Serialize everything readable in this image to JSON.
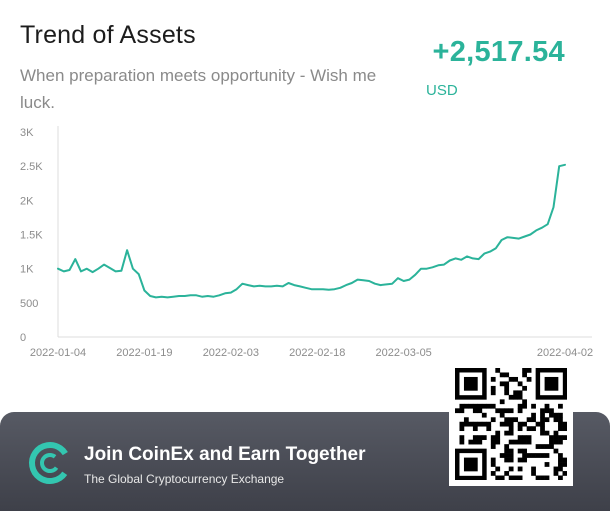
{
  "header": {
    "title": "Trend of Assets",
    "subtitle": "When preparation meets opportunity - Wish me luck.",
    "gain": "+2,517.54",
    "currency": "USD"
  },
  "chart_data": {
    "type": "line",
    "title": "",
    "xlabel": "",
    "ylabel": "",
    "ylim": [
      0,
      3000
    ],
    "yticks": [
      0,
      500,
      1000,
      1500,
      2000,
      2500,
      3000
    ],
    "ytick_labels": [
      "0",
      "500",
      "1K",
      "1.5K",
      "2K",
      "2.5K",
      "3K"
    ],
    "xticks": [
      "2022-01-04",
      "2022-01-19",
      "2022-02-03",
      "2022-02-18",
      "2022-03-05",
      "2022-04-02"
    ],
    "grid": false,
    "color": "#2bb39a",
    "series": [
      {
        "x": [
          "2022-01-04",
          "2022-01-05",
          "2022-01-06",
          "2022-01-07",
          "2022-01-08",
          "2022-01-09",
          "2022-01-10",
          "2022-01-11",
          "2022-01-12",
          "2022-01-13",
          "2022-01-14",
          "2022-01-15",
          "2022-01-16",
          "2022-01-17",
          "2022-01-18",
          "2022-01-19",
          "2022-01-20",
          "2022-01-21",
          "2022-01-22",
          "2022-01-23",
          "2022-01-24",
          "2022-01-25",
          "2022-01-26",
          "2022-01-27",
          "2022-01-28",
          "2022-01-29",
          "2022-01-30",
          "2022-01-31",
          "2022-02-01",
          "2022-02-02",
          "2022-02-03",
          "2022-02-04",
          "2022-02-05",
          "2022-02-06",
          "2022-02-07",
          "2022-02-08",
          "2022-02-09",
          "2022-02-10",
          "2022-02-11",
          "2022-02-12",
          "2022-02-13",
          "2022-02-14",
          "2022-02-15",
          "2022-02-16",
          "2022-02-17",
          "2022-02-18",
          "2022-02-19",
          "2022-02-20",
          "2022-02-21",
          "2022-02-22",
          "2022-02-23",
          "2022-02-24",
          "2022-02-25",
          "2022-02-26",
          "2022-02-27",
          "2022-02-28",
          "2022-03-01",
          "2022-03-02",
          "2022-03-03",
          "2022-03-04",
          "2022-03-05",
          "2022-03-06",
          "2022-03-07",
          "2022-03-08",
          "2022-03-09",
          "2022-03-10",
          "2022-03-11",
          "2022-03-12",
          "2022-03-13",
          "2022-03-14",
          "2022-03-15",
          "2022-03-16",
          "2022-03-17",
          "2022-03-18",
          "2022-03-19",
          "2022-03-20",
          "2022-03-21",
          "2022-03-22",
          "2022-03-23",
          "2022-03-24",
          "2022-03-25",
          "2022-03-26",
          "2022-03-27",
          "2022-03-28",
          "2022-03-29",
          "2022-03-30",
          "2022-03-31",
          "2022-04-01",
          "2022-04-02"
        ],
        "y": [
          1000,
          960,
          980,
          1140,
          960,
          1000,
          950,
          1000,
          1060,
          1010,
          960,
          970,
          1270,
          1000,
          920,
          680,
          600,
          580,
          590,
          580,
          590,
          600,
          600,
          610,
          610,
          590,
          600,
          590,
          610,
          640,
          650,
          700,
          780,
          760,
          740,
          750,
          740,
          740,
          750,
          740,
          790,
          760,
          740,
          720,
          700,
          700,
          700,
          690,
          700,
          720,
          760,
          790,
          840,
          830,
          820,
          780,
          760,
          770,
          780,
          860,
          820,
          840,
          910,
          1000,
          1000,
          1020,
          1050,
          1060,
          1120,
          1150,
          1130,
          1180,
          1150,
          1140,
          1220,
          1250,
          1300,
          1420,
          1460,
          1450,
          1440,
          1470,
          1500,
          1560,
          1600,
          1650,
          1900,
          2500,
          2520
        ]
      }
    ]
  },
  "banner": {
    "logo_icon": "coinex-logo-icon",
    "headline": "Join CoinEx and Earn Together",
    "tagline": "The Global Cryptocurrency Exchange",
    "qr_icon": "qr-code-icon"
  }
}
